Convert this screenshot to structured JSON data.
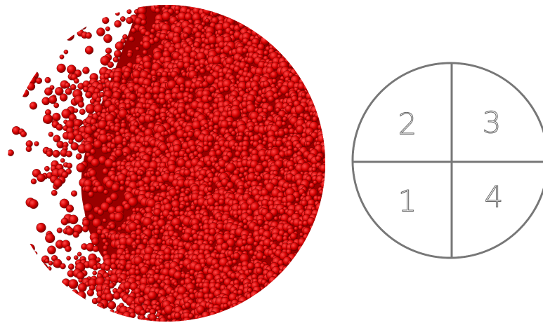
{
  "quadrants": [
    {
      "label": "2"
    },
    {
      "label": "3"
    },
    {
      "label": "1"
    },
    {
      "label": "4"
    }
  ]
}
